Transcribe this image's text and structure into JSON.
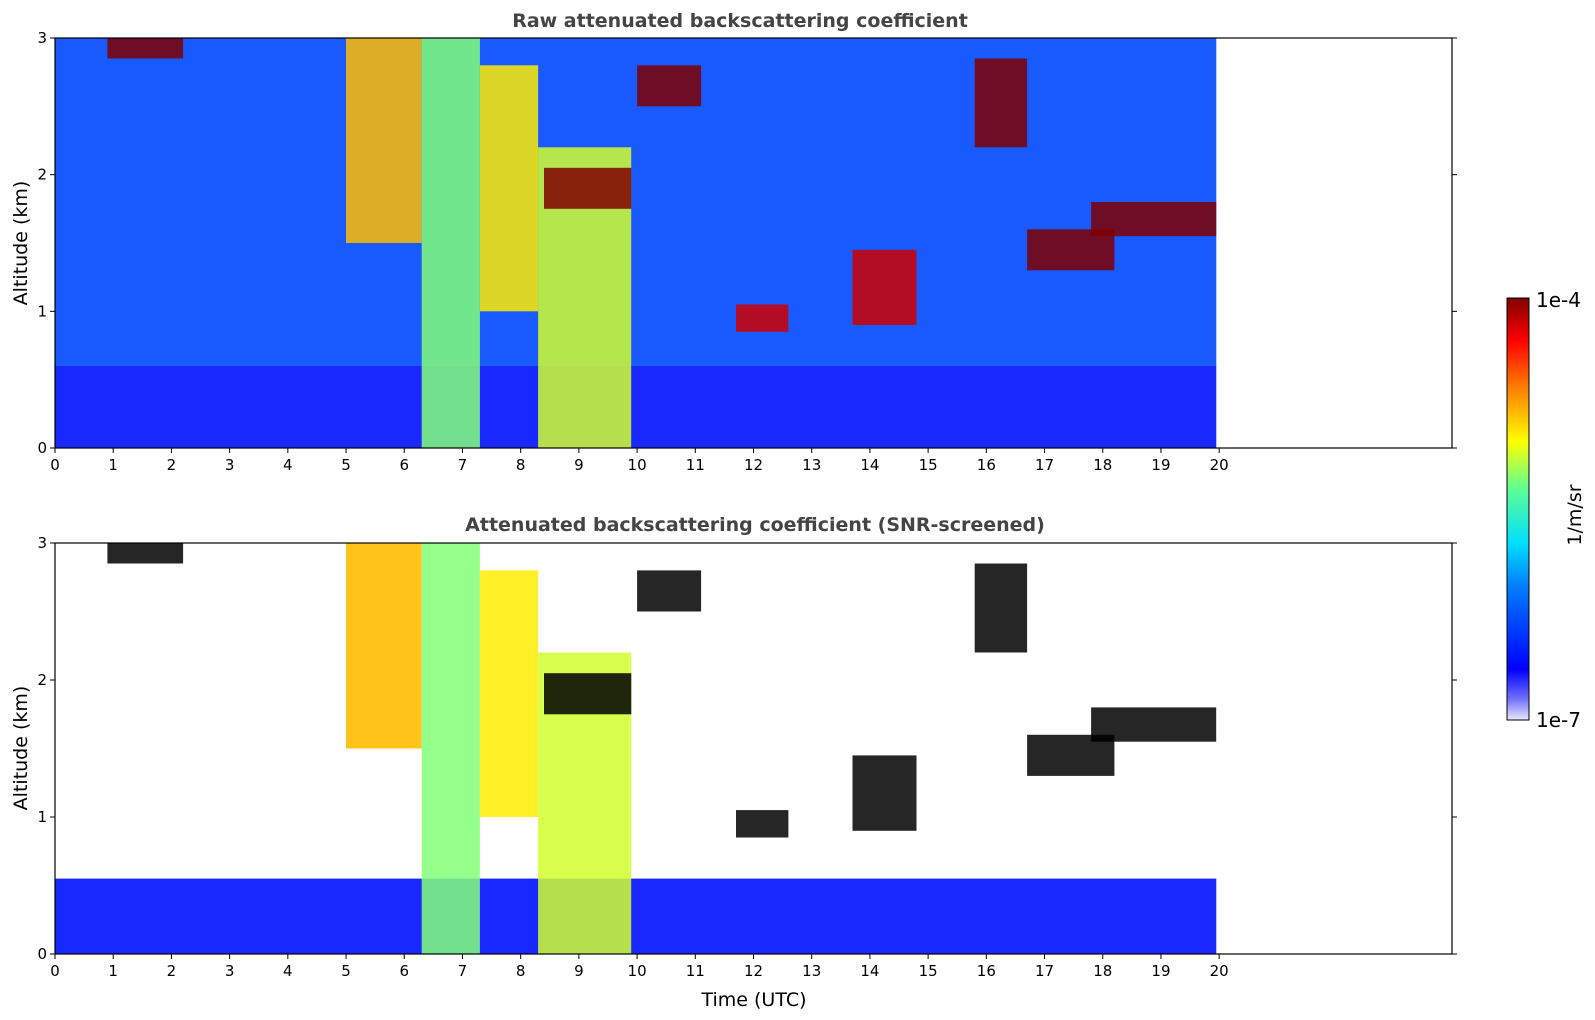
{
  "chart_data": [
    {
      "type": "heatmap",
      "title": "Raw attenuated backscattering coefficient",
      "xlabel": "",
      "ylabel": "Altitude (km)",
      "xlim": [
        0,
        24
      ],
      "ylim": [
        0,
        3
      ],
      "xticks": [
        "0",
        "1",
        "2",
        "3",
        "4",
        "5",
        "6",
        "7",
        "8",
        "9",
        "10",
        "11",
        "12",
        "13",
        "14",
        "15",
        "16",
        "17",
        "18",
        "19",
        "20"
      ],
      "yticks": [
        "0",
        "1",
        "2",
        "3"
      ],
      "data_extent_hours": [
        0,
        19.95
      ],
      "features": [
        {
          "name": "near-surface aerosol layer",
          "t": [
            0,
            19.95
          ],
          "alt": [
            0,
            0.6
          ],
          "level": 0.15
        },
        {
          "name": "noisy upper region",
          "t": [
            0,
            19.95
          ],
          "alt": [
            0.6,
            3.0
          ],
          "level": 0.25
        },
        {
          "name": "precipitation / cloud streak",
          "t": [
            5.0,
            6.3
          ],
          "alt": [
            1.5,
            3.0
          ],
          "level": 0.75
        },
        {
          "name": "precipitation / cloud streak",
          "t": [
            6.3,
            7.3
          ],
          "alt": [
            0,
            3.0
          ],
          "level": 0.6
        },
        {
          "name": "precipitation / cloud streak",
          "t": [
            7.3,
            8.3
          ],
          "alt": [
            1.0,
            2.8
          ],
          "level": 0.7
        },
        {
          "name": "precipitation / cloud streak",
          "t": [
            8.3,
            9.9
          ],
          "alt": [
            0,
            2.2
          ],
          "level": 0.65
        },
        {
          "name": "cloud",
          "t": [
            0.9,
            2.2
          ],
          "alt": [
            2.85,
            3.0
          ],
          "level": 1.0
        },
        {
          "name": "cloud",
          "t": [
            8.4,
            9.9
          ],
          "alt": [
            1.75,
            2.05
          ],
          "level": 1.0
        },
        {
          "name": "cloud",
          "t": [
            10.0,
            11.1
          ],
          "alt": [
            2.5,
            2.8
          ],
          "level": 1.0
        },
        {
          "name": "cloud",
          "t": [
            11.7,
            12.6
          ],
          "alt": [
            0.85,
            1.05
          ],
          "level": 0.95
        },
        {
          "name": "cloud",
          "t": [
            13.7,
            14.8
          ],
          "alt": [
            0.9,
            1.45
          ],
          "level": 0.95
        },
        {
          "name": "cloud",
          "t": [
            15.8,
            16.7
          ],
          "alt": [
            2.2,
            2.85
          ],
          "level": 1.0
        },
        {
          "name": "cloud",
          "t": [
            16.7,
            18.2
          ],
          "alt": [
            1.3,
            1.6
          ],
          "level": 1.0
        },
        {
          "name": "cloud",
          "t": [
            17.8,
            19.95
          ],
          "alt": [
            1.55,
            1.8
          ],
          "level": 1.0
        }
      ]
    },
    {
      "type": "heatmap",
      "title": "Attenuated backscattering coefficient (SNR-screened)",
      "xlabel": "Time (UTC)",
      "ylabel": "Altitude (km)",
      "xlim": [
        0,
        24
      ],
      "ylim": [
        0,
        3
      ],
      "xticks": [
        "0",
        "1",
        "2",
        "3",
        "4",
        "5",
        "6",
        "7",
        "8",
        "9",
        "10",
        "11",
        "12",
        "13",
        "14",
        "15",
        "16",
        "17",
        "18",
        "19",
        "20"
      ],
      "yticks": [
        "0",
        "1",
        "2",
        "3"
      ],
      "data_extent_hours": [
        0,
        19.95
      ],
      "features": [
        {
          "name": "screened aerosol layer",
          "t": [
            0,
            19.95
          ],
          "alt": [
            0,
            0.55
          ],
          "level": 0.15
        },
        {
          "name": "precipitation / cloud streak",
          "t": [
            5.0,
            6.3
          ],
          "alt": [
            1.5,
            3.0
          ],
          "level": 0.75
        },
        {
          "name": "precipitation / cloud streak",
          "t": [
            6.3,
            7.3
          ],
          "alt": [
            0,
            3.0
          ],
          "level": 0.6
        },
        {
          "name": "precipitation / cloud streak",
          "t": [
            7.3,
            8.3
          ],
          "alt": [
            1.0,
            2.8
          ],
          "level": 0.7
        },
        {
          "name": "precipitation / cloud streak",
          "t": [
            8.3,
            9.9
          ],
          "alt": [
            0,
            2.2
          ],
          "level": 0.65
        },
        {
          "name": "saturated cloud",
          "t": [
            0.9,
            2.2
          ],
          "alt": [
            2.85,
            3.0
          ],
          "level": 1.1
        },
        {
          "name": "saturated cloud",
          "t": [
            8.4,
            9.9
          ],
          "alt": [
            1.75,
            2.05
          ],
          "level": 1.1
        },
        {
          "name": "saturated cloud",
          "t": [
            10.0,
            11.1
          ],
          "alt": [
            2.5,
            2.8
          ],
          "level": 1.1
        },
        {
          "name": "saturated cloud",
          "t": [
            11.7,
            12.6
          ],
          "alt": [
            0.85,
            1.05
          ],
          "level": 1.1
        },
        {
          "name": "saturated cloud",
          "t": [
            13.7,
            14.8
          ],
          "alt": [
            0.9,
            1.45
          ],
          "level": 1.1
        },
        {
          "name": "saturated cloud",
          "t": [
            15.8,
            16.7
          ],
          "alt": [
            2.2,
            2.85
          ],
          "level": 1.1
        },
        {
          "name": "saturated cloud",
          "t": [
            16.7,
            18.2
          ],
          "alt": [
            1.3,
            1.6
          ],
          "level": 1.1
        },
        {
          "name": "saturated cloud",
          "t": [
            17.8,
            19.95
          ],
          "alt": [
            1.55,
            1.8
          ],
          "level": 1.1
        }
      ]
    }
  ],
  "colorbar": {
    "label": "1/m/sr",
    "max_label": "1e-4",
    "min_label": "1e-7",
    "colormap": "jet",
    "scale": "log",
    "range": [
      "1e-7",
      "1e-4"
    ]
  },
  "colors": {
    "title": "#444444",
    "low": "#00008b",
    "mid": "#00e0ff",
    "high": "#ffd000",
    "max": "#800000",
    "saturated": "#000000"
  }
}
